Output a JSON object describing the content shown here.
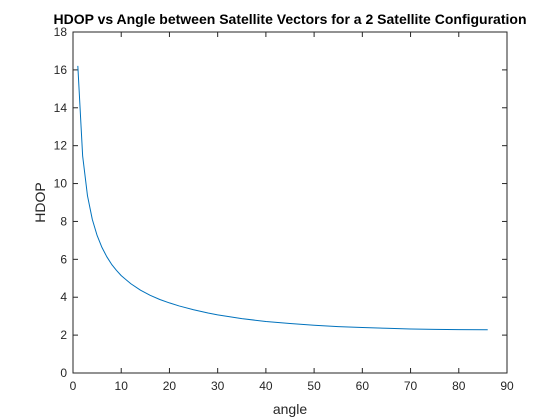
{
  "chart_data": {
    "type": "line",
    "title": "HDOP vs Angle between Satellite Vectors for a 2 Satellite Configuration",
    "xlabel": "angle",
    "ylabel": "HDOP",
    "xlim": [
      0,
      90
    ],
    "ylim": [
      0,
      18
    ],
    "xticks": [
      0,
      10,
      20,
      30,
      40,
      50,
      60,
      70,
      80,
      90
    ],
    "yticks": [
      0,
      2,
      4,
      6,
      8,
      10,
      12,
      14,
      16,
      18
    ],
    "grid": false,
    "series": [
      {
        "color": "#0072bd",
        "x": [
          1,
          2,
          3,
          4,
          5,
          6,
          7,
          8,
          9,
          10,
          12,
          14,
          16,
          18,
          20,
          22,
          25,
          28,
          30,
          35,
          40,
          45,
          50,
          55,
          60,
          65,
          70,
          75,
          80,
          86
        ],
        "y": [
          16.21,
          11.46,
          9.36,
          8.11,
          7.26,
          6.63,
          6.14,
          5.74,
          5.42,
          5.14,
          4.71,
          4.37,
          4.1,
          3.88,
          3.7,
          3.54,
          3.34,
          3.17,
          3.07,
          2.87,
          2.72,
          2.61,
          2.52,
          2.45,
          2.4,
          2.36,
          2.32,
          2.3,
          2.29,
          2.28
        ]
      }
    ]
  }
}
